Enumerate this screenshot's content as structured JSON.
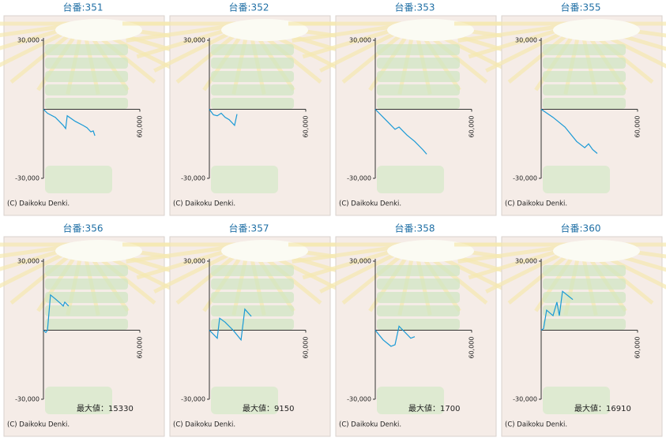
{
  "chart_data": [
    {
      "type": "line",
      "title": "台番:351",
      "color": "#1a9ad6",
      "xlim": [
        0,
        60000
      ],
      "ylim": [
        -30000,
        30000
      ],
      "xticks": [
        {
          "value": 60000,
          "label": "60,000"
        }
      ],
      "yticks": [
        {
          "value": 30000,
          "label": "30,000"
        },
        {
          "value": -30000,
          "label": "-30,000"
        }
      ],
      "x": [
        0,
        2500,
        7400,
        12300,
        13800,
        14800,
        19700,
        24600,
        27100,
        29500,
        31000,
        32000
      ],
      "values": [
        0,
        -1700,
        -3500,
        -7000,
        -8400,
        -2800,
        -5200,
        -7000,
        -8000,
        -9800,
        -9400,
        -11500
      ],
      "copyright": "(C) Daikoku Denki."
    },
    {
      "type": "line",
      "title": "台番:352",
      "color": "#1a9ad6",
      "xlim": [
        0,
        60000
      ],
      "ylim": [
        -30000,
        30000
      ],
      "xticks": [
        {
          "value": 60000,
          "label": "60,000"
        }
      ],
      "yticks": [
        {
          "value": 30000,
          "label": "30,000"
        },
        {
          "value": -30000,
          "label": "-30,000"
        }
      ],
      "x": [
        0,
        2500,
        4900,
        7400,
        9800,
        12300,
        15700,
        17200
      ],
      "values": [
        0,
        -2400,
        -2800,
        -1700,
        -3500,
        -4500,
        -7000,
        -2100
      ],
      "copyright": "(C) Daikoku Denki."
    },
    {
      "type": "line",
      "title": "台番:353",
      "color": "#1a9ad6",
      "xlim": [
        0,
        60000
      ],
      "ylim": [
        -30000,
        30000
      ],
      "xticks": [
        {
          "value": 60000,
          "label": "60,000"
        }
      ],
      "yticks": [
        {
          "value": 30000,
          "label": "30,000"
        },
        {
          "value": -30000,
          "label": "-30,000"
        }
      ],
      "x": [
        0,
        7400,
        12300,
        14800,
        19700,
        24600,
        29500,
        32000
      ],
      "values": [
        0,
        -5200,
        -8700,
        -7700,
        -11200,
        -14000,
        -17500,
        -19500
      ],
      "copyright": "(C) Daikoku Denki."
    },
    {
      "type": "line",
      "title": "台番:355",
      "color": "#1a9ad6",
      "xlim": [
        0,
        60000
      ],
      "ylim": [
        -30000,
        30000
      ],
      "xticks": [
        {
          "value": 60000,
          "label": "60,000"
        }
      ],
      "yticks": [
        {
          "value": 30000,
          "label": "30,000"
        },
        {
          "value": -30000,
          "label": "-30,000"
        }
      ],
      "x": [
        0,
        7400,
        14800,
        22100,
        27100,
        29500,
        32000,
        34900
      ],
      "values": [
        0,
        -3500,
        -7700,
        -14000,
        -16700,
        -15000,
        -17500,
        -19200
      ],
      "copyright": "(C) Daikoku Denki."
    },
    {
      "type": "line",
      "title": "台番:356",
      "color": "#1a9ad6",
      "xlim": [
        0,
        60000
      ],
      "ylim": [
        -30000,
        30000
      ],
      "xticks": [
        {
          "value": 60000,
          "label": "60,000"
        }
      ],
      "yticks": [
        {
          "value": 30000,
          "label": "30,000"
        },
        {
          "value": -30000,
          "label": "-30,000"
        }
      ],
      "x": [
        0,
        1500,
        2500,
        4400,
        7400,
        11300,
        12300,
        13300,
        15700
      ],
      "values": [
        0,
        -1000,
        0,
        15330,
        13600,
        11200,
        10500,
        12200,
        10500
      ],
      "annotation": "最大値：15330",
      "copyright": "(C) Daikoku Denki."
    },
    {
      "type": "line",
      "title": "台番:357",
      "color": "#1a9ad6",
      "xlim": [
        0,
        60000
      ],
      "ylim": [
        -30000,
        30000
      ],
      "xticks": [
        {
          "value": 60000,
          "label": "60,000"
        }
      ],
      "yticks": [
        {
          "value": 30000,
          "label": "30,000"
        },
        {
          "value": -30000,
          "label": "-30,000"
        }
      ],
      "x": [
        0,
        4900,
        6400,
        9800,
        14800,
        19700,
        22100,
        26100
      ],
      "values": [
        0,
        -3500,
        5200,
        3500,
        0,
        -4200,
        9150,
        6000
      ],
      "annotation": "最大値：9150",
      "copyright": "(C) Daikoku Denki."
    },
    {
      "type": "line",
      "title": "台番:358",
      "color": "#1a9ad6",
      "xlim": [
        0,
        60000
      ],
      "ylim": [
        -30000,
        30000
      ],
      "xticks": [
        {
          "value": 60000,
          "label": "60,000"
        }
      ],
      "yticks": [
        {
          "value": 30000,
          "label": "30,000"
        },
        {
          "value": -30000,
          "label": "-30,000"
        }
      ],
      "x": [
        0,
        4900,
        9800,
        12300,
        14800,
        18200,
        22100,
        24600
      ],
      "values": [
        0,
        -4200,
        -7000,
        -6300,
        1700,
        -700,
        -3500,
        -2800
      ],
      "annotation": "最大値：1700",
      "copyright": "(C) Daikoku Denki."
    },
    {
      "type": "line",
      "title": "台番:360",
      "color": "#1a9ad6",
      "xlim": [
        0,
        60000
      ],
      "ylim": [
        -30000,
        30000
      ],
      "xticks": [
        {
          "value": 60000,
          "label": "60,000"
        }
      ],
      "yticks": [
        {
          "value": 30000,
          "label": "30,000"
        },
        {
          "value": -30000,
          "label": "-30,000"
        }
      ],
      "x": [
        0,
        1500,
        3400,
        7400,
        9800,
        11300,
        13300,
        17200,
        19700
      ],
      "values": [
        0,
        700,
        8700,
        6300,
        12200,
        6300,
        16910,
        14700,
        13300
      ],
      "annotation": "最大値：16910",
      "copyright": "(C) Daikoku Denki."
    }
  ]
}
